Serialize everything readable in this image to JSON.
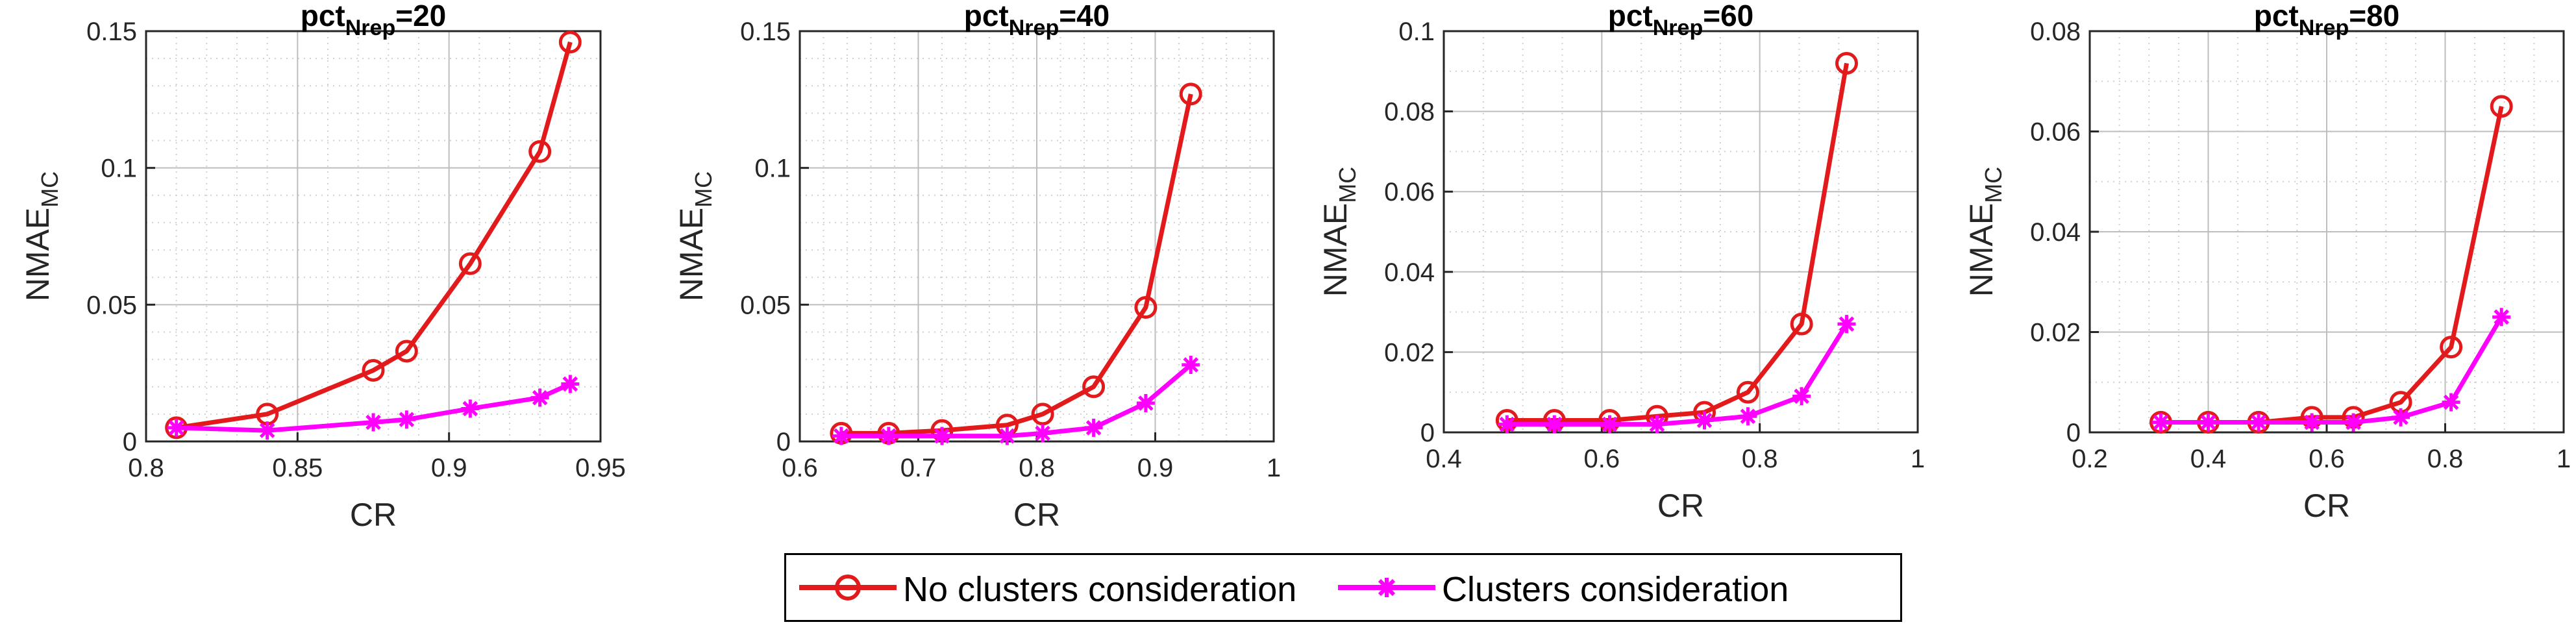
{
  "colors": {
    "no_clusters": "#e31a1c",
    "clusters": "#ff00ff",
    "grid": "#bdbdbd",
    "axis": "#262626"
  },
  "legend": {
    "no_clusters_label": "No clusters consideration",
    "clusters_label": "Clusters consideration"
  },
  "chart_data": [
    {
      "type": "line",
      "title_main": "pct",
      "title_sub": "Nrep",
      "title_suffix": "=20",
      "xlabel": "CR",
      "ylabel_main": "NMAE",
      "ylabel_sub": "MC",
      "xlim": [
        0.8,
        0.95
      ],
      "ylim": [
        0,
        0.15
      ],
      "xticks": [
        0.8,
        0.85,
        0.9,
        0.95
      ],
      "xtick_labels": [
        "0.8",
        "0.85",
        "0.9",
        "0.95"
      ],
      "yticks": [
        0,
        0.05,
        0.1,
        0.15
      ],
      "ytick_labels": [
        "0",
        "0.05",
        "0.1",
        "0.15"
      ],
      "minor_x": 0.01,
      "minor_y": 0.01,
      "series": [
        {
          "name": "No clusters consideration",
          "x": [
            0.81,
            0.84,
            0.875,
            0.886,
            0.907,
            0.93,
            0.94
          ],
          "y": [
            0.005,
            0.01,
            0.026,
            0.033,
            0.065,
            0.106,
            0.146
          ]
        },
        {
          "name": "Clusters consideration",
          "x": [
            0.81,
            0.84,
            0.875,
            0.886,
            0.907,
            0.93,
            0.94
          ],
          "y": [
            0.005,
            0.004,
            0.007,
            0.008,
            0.012,
            0.016,
            0.021
          ]
        }
      ]
    },
    {
      "type": "line",
      "title_main": "pct",
      "title_sub": "Nrep",
      "title_suffix": "=40",
      "xlabel": "CR",
      "ylabel_main": "NMAE",
      "ylabel_sub": "MC",
      "xlim": [
        0.6,
        1.0
      ],
      "ylim": [
        0,
        0.15
      ],
      "xticks": [
        0.6,
        0.7,
        0.8,
        0.9,
        1.0
      ],
      "xtick_labels": [
        "0.6",
        "0.7",
        "0.8",
        "0.9",
        "1"
      ],
      "yticks": [
        0,
        0.05,
        0.1,
        0.15
      ],
      "ytick_labels": [
        "0",
        "0.05",
        "0.1",
        "0.15"
      ],
      "minor_x": 0.02,
      "minor_y": 0.01,
      "series": [
        {
          "name": "No clusters consideration",
          "x": [
            0.635,
            0.675,
            0.72,
            0.775,
            0.805,
            0.848,
            0.892,
            0.93
          ],
          "y": [
            0.003,
            0.003,
            0.004,
            0.006,
            0.01,
            0.02,
            0.049,
            0.127
          ]
        },
        {
          "name": "Clusters consideration",
          "x": [
            0.635,
            0.675,
            0.72,
            0.775,
            0.805,
            0.848,
            0.892,
            0.93
          ],
          "y": [
            0.002,
            0.002,
            0.002,
            0.002,
            0.003,
            0.005,
            0.014,
            0.028
          ]
        }
      ]
    },
    {
      "type": "line",
      "title_main": "pct",
      "title_sub": "Nrep",
      "title_suffix": "=60",
      "xlabel": "CR",
      "ylabel_main": "NMAE",
      "ylabel_sub": "MC",
      "xlim": [
        0.4,
        1.0
      ],
      "ylim": [
        0,
        0.1
      ],
      "xticks": [
        0.4,
        0.6,
        0.8,
        1.0
      ],
      "xtick_labels": [
        "0.4",
        "0.6",
        "0.8",
        "1"
      ],
      "yticks": [
        0,
        0.02,
        0.04,
        0.06,
        0.08,
        0.1
      ],
      "ytick_labels": [
        "0",
        "0.02",
        "0.04",
        "0.06",
        "0.08",
        "0.1"
      ],
      "minor_x": 0.05,
      "minor_y": 0.01,
      "series": [
        {
          "name": "No clusters consideration",
          "x": [
            0.48,
            0.54,
            0.61,
            0.67,
            0.73,
            0.785,
            0.853,
            0.91
          ],
          "y": [
            0.003,
            0.003,
            0.003,
            0.004,
            0.005,
            0.01,
            0.027,
            0.092
          ]
        },
        {
          "name": "Clusters consideration",
          "x": [
            0.48,
            0.54,
            0.61,
            0.67,
            0.73,
            0.785,
            0.853,
            0.91
          ],
          "y": [
            0.002,
            0.002,
            0.002,
            0.002,
            0.003,
            0.004,
            0.009,
            0.027
          ]
        }
      ]
    },
    {
      "type": "line",
      "title_main": "pct",
      "title_sub": "Nrep",
      "title_suffix": "=80",
      "xlabel": "CR",
      "ylabel_main": "NMAE",
      "ylabel_sub": "MC",
      "xlim": [
        0.2,
        1.0
      ],
      "ylim": [
        0,
        0.08
      ],
      "xticks": [
        0.2,
        0.4,
        0.6,
        0.8,
        1.0
      ],
      "xtick_labels": [
        "0.2",
        "0.4",
        "0.6",
        "0.8",
        "1"
      ],
      "yticks": [
        0,
        0.02,
        0.04,
        0.06,
        0.08
      ],
      "ytick_labels": [
        "0",
        "0.02",
        "0.04",
        "0.06",
        "0.08"
      ],
      "minor_x": 0.05,
      "minor_y": 0.01,
      "series": [
        {
          "name": "No clusters consideration",
          "x": [
            0.32,
            0.4,
            0.485,
            0.575,
            0.645,
            0.725,
            0.81,
            0.895
          ],
          "y": [
            0.002,
            0.002,
            0.002,
            0.003,
            0.003,
            0.006,
            0.017,
            0.065
          ]
        },
        {
          "name": "Clusters consideration",
          "x": [
            0.32,
            0.4,
            0.485,
            0.575,
            0.645,
            0.725,
            0.81,
            0.895
          ],
          "y": [
            0.002,
            0.002,
            0.002,
            0.002,
            0.002,
            0.003,
            0.006,
            0.023
          ]
        }
      ]
    }
  ]
}
